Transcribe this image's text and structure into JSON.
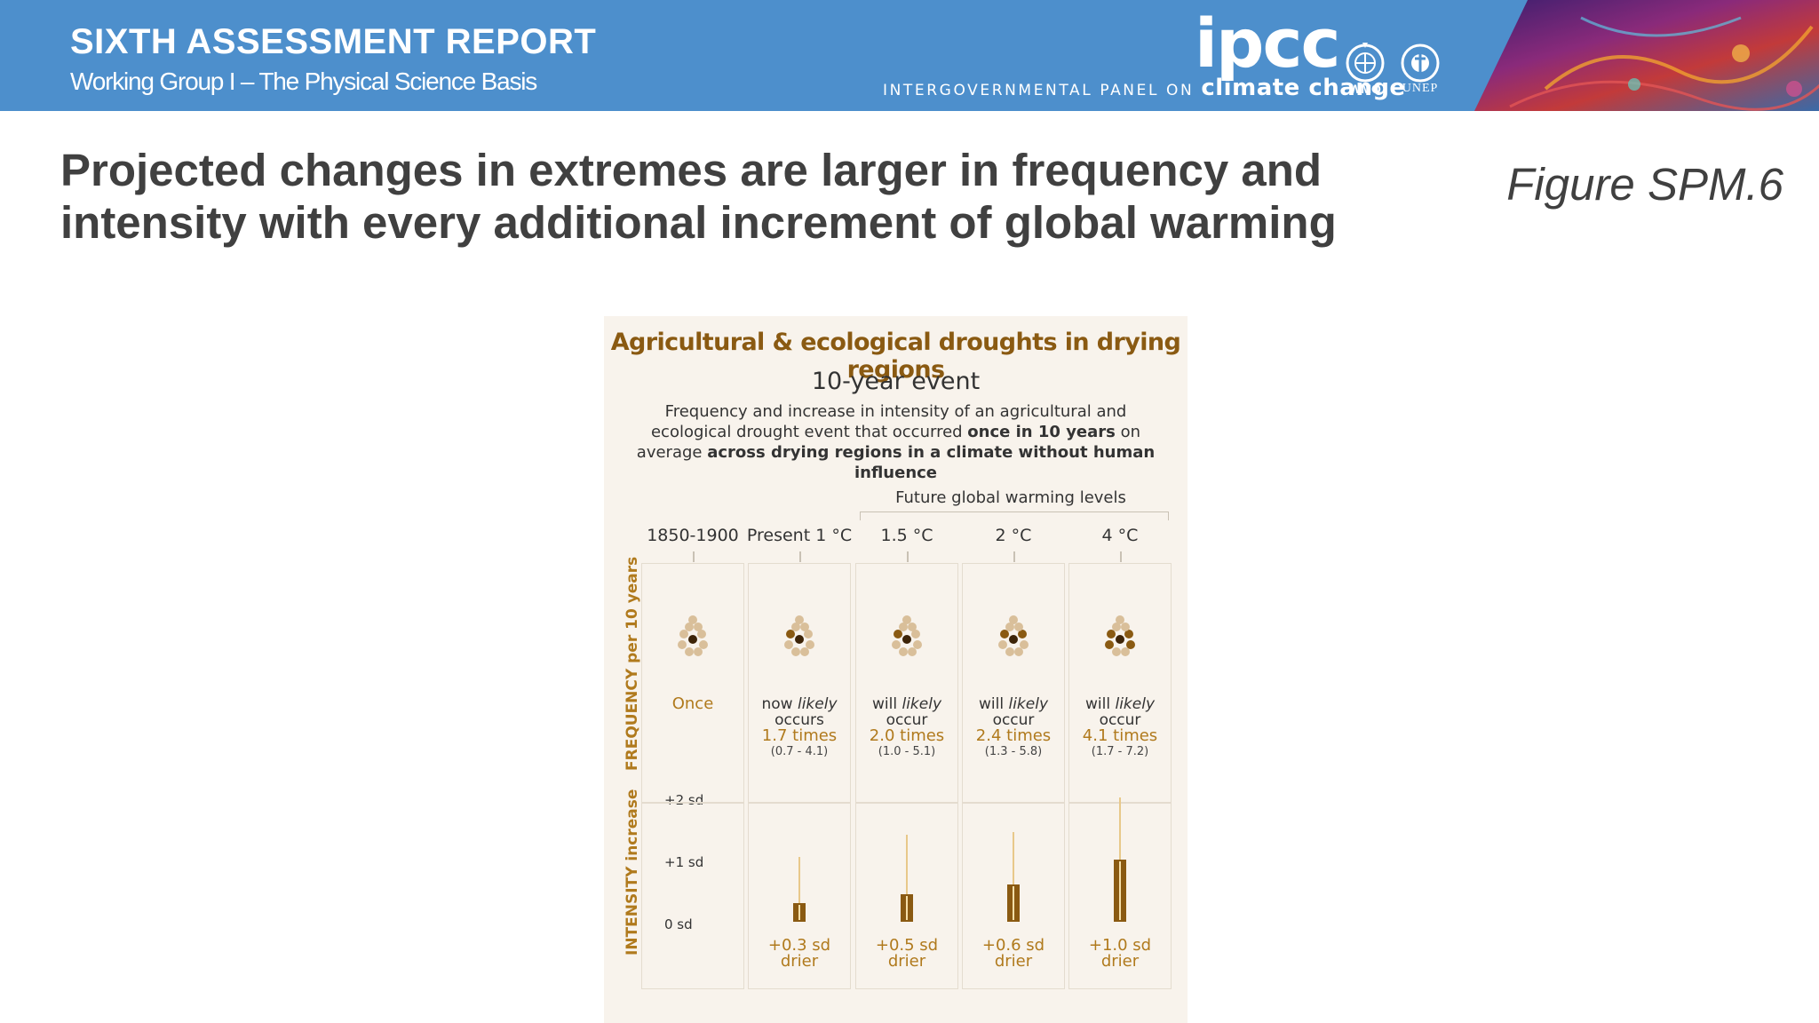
{
  "header": {
    "report_title": "SIXTH ASSESSMENT REPORT",
    "report_subtitle": "Working Group I – The Physical Science Basis",
    "logo_text": "ipcc",
    "tagline_prefix": "INTERGOVERNMENTAL PANEL ON",
    "tagline_suffix": "climate change",
    "wmo_label": "WMO",
    "unep_label": "UNEP",
    "banner_color": "#4d8fcc"
  },
  "slide": {
    "headline": "Projected changes in extremes are larger in frequency and intensity with every additional increment of global warming",
    "figure_ref": "Figure SPM.6"
  },
  "figure": {
    "title": "Agricultural & ecological droughts in drying regions",
    "subtitle": "10-year event",
    "description_parts": {
      "p1": "Frequency and increase in intensity of an agricultural and ecological drought event that occurred ",
      "b1": "once in 10 years",
      "p2": " on average ",
      "b2": "across drying regions in a climate without human influence"
    },
    "future_label": "Future global warming levels",
    "frequency_axis_label": "FREQUENCY per 10 years",
    "intensity_axis_label": "INTENSITY increase",
    "sd_labels": [
      "+2 sd",
      "+1 sd",
      "0 sd"
    ],
    "columns": [
      {
        "label": "1850-1900",
        "freq_once": "Once",
        "intensity_sd": 0,
        "intensity_low": 0,
        "intensity_high": 0,
        "dots_dark": 1
      },
      {
        "label": "Present 1 °C",
        "freq_prefix": "now",
        "freq_likely": "likely",
        "freq_verb": "occurs",
        "freq_times": "1.7 times",
        "freq_range": "(0.7 - 4.1)",
        "intensity_text": "+0.3 sd",
        "intensity_word": "drier",
        "intensity_sd": 0.3,
        "intensity_low": 0,
        "intensity_high": 1.05,
        "dots_dark": 2
      },
      {
        "label": "1.5 °C",
        "freq_prefix": "will",
        "freq_likely": "likely",
        "freq_verb": "occur",
        "freq_times": "2.0 times",
        "freq_range": "(1.0 - 5.1)",
        "intensity_text": "+0.5 sd",
        "intensity_word": "drier",
        "intensity_sd": 0.45,
        "intensity_low": 0,
        "intensity_high": 1.4,
        "dots_dark": 2
      },
      {
        "label": "2 °C",
        "freq_prefix": "will",
        "freq_likely": "likely",
        "freq_verb": "occur",
        "freq_times": "2.4 times",
        "freq_range": "(1.3 - 5.8)",
        "intensity_text": "+0.6 sd",
        "intensity_word": "drier",
        "intensity_sd": 0.6,
        "intensity_low": 0,
        "intensity_high": 1.45,
        "dots_dark": 3
      },
      {
        "label": "4 °C",
        "freq_prefix": "will",
        "freq_likely": "likely",
        "freq_verb": "occur",
        "freq_times": "4.1 times",
        "freq_range": "(1.7 - 7.2)",
        "intensity_text": "+1.0 sd",
        "intensity_word": "drier",
        "intensity_sd": 1.0,
        "intensity_low": 0,
        "intensity_high": 2.0,
        "dots_dark": 5
      }
    ],
    "colors": {
      "accent_dark": "#8a5a12",
      "accent_gold": "#b07a1d",
      "dot_light": "#d9bf9a",
      "panel_bg": "#f8f3ec"
    }
  }
}
